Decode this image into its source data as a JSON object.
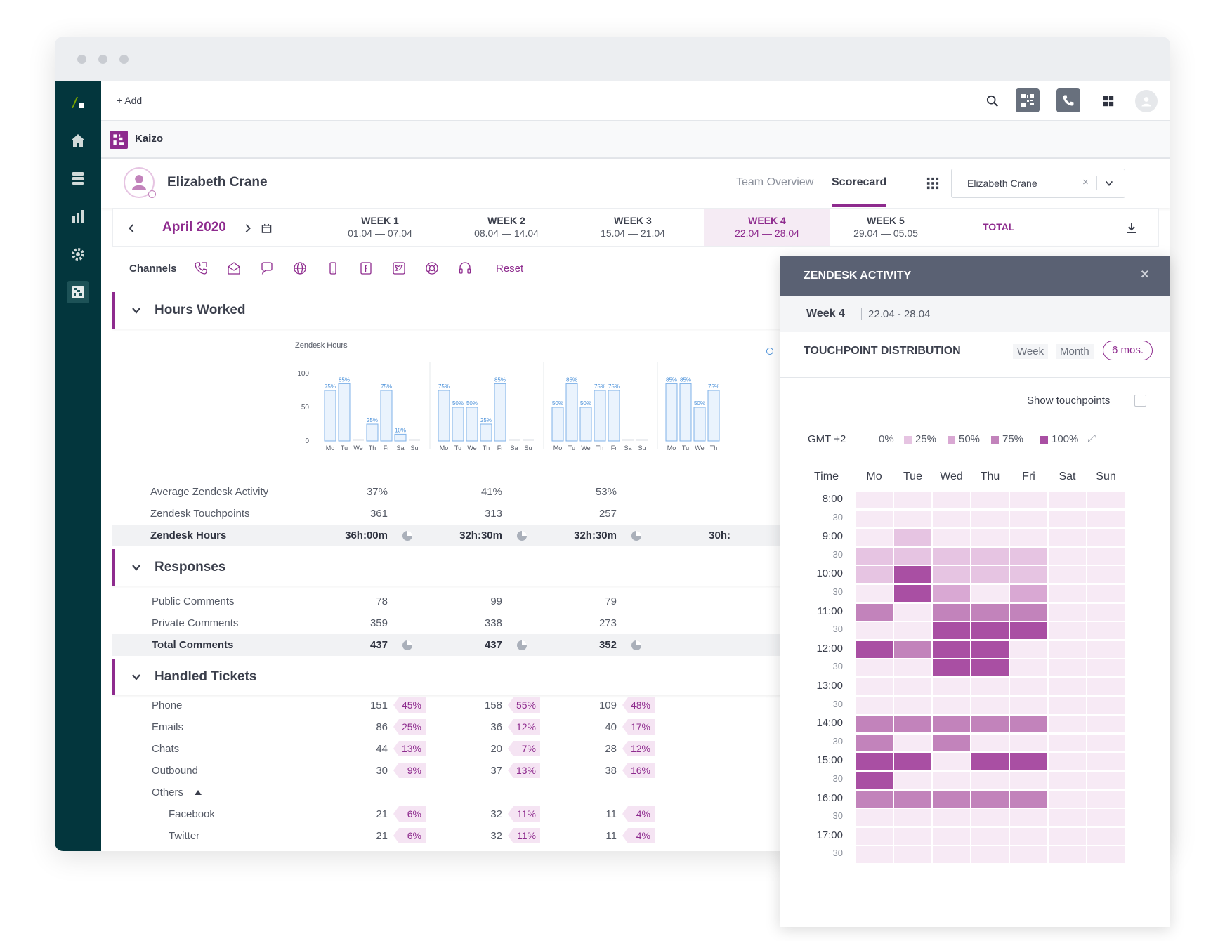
{
  "topbar": {
    "add_label": "+ Add"
  },
  "app": {
    "name": "Kaizo"
  },
  "header": {
    "user_name": "Elizabeth Crane",
    "tabs": [
      {
        "label": "Team Overview"
      },
      {
        "label": "Scorecard",
        "active": true
      }
    ],
    "user_select": {
      "value": "Elizabeth Crane"
    }
  },
  "weekbar": {
    "month": "April 2020",
    "weeks": [
      {
        "label": "WEEK 1",
        "range": "01.04 — 07.04"
      },
      {
        "label": "WEEK 2",
        "range": "08.04 — 14.04"
      },
      {
        "label": "WEEK 3",
        "range": "15.04 — 21.04"
      },
      {
        "label": "WEEK 4",
        "range": "22.04 — 28.04",
        "active": true
      },
      {
        "label": "WEEK 5",
        "range": "29.04 — 05.05"
      }
    ],
    "total_label": "TOTAL"
  },
  "channels": {
    "label": "Channels",
    "icons": [
      "phone-icon",
      "email-icon",
      "chat-icon",
      "web-icon",
      "mobile-icon",
      "facebook-icon",
      "twitter-icon",
      "help-center-icon",
      "headset-icon"
    ],
    "reset_label": "Reset"
  },
  "sections": {
    "hours": {
      "title": "Hours Worked",
      "rows": [
        {
          "label": "Average Zendesk Activity",
          "values": [
            "37%",
            "41%",
            "53%"
          ]
        },
        {
          "label": "Zendesk Touchpoints",
          "values": [
            "361",
            "313",
            "257"
          ]
        },
        {
          "label": "Zendesk Hours",
          "values": [
            "36h:00m",
            "32h:30m",
            "32h:30m",
            "30h:"
          ]
        }
      ]
    },
    "responses": {
      "title": "Responses",
      "rows": [
        {
          "label": "Public Comments",
          "values": [
            "78",
            "99",
            "79"
          ]
        },
        {
          "label": "Private Comments",
          "values": [
            "359",
            "338",
            "273"
          ]
        },
        {
          "label": "Total Comments",
          "values": [
            "437",
            "437",
            "352"
          ]
        }
      ]
    },
    "tickets": {
      "title": "Handled Tickets",
      "rows": [
        {
          "label": "Phone",
          "values": [
            "151",
            "158",
            "109"
          ],
          "pcts": [
            "45%",
            "55%",
            "48%"
          ]
        },
        {
          "label": "Emails",
          "values": [
            "86",
            "36",
            "40"
          ],
          "pcts": [
            "25%",
            "12%",
            "17%"
          ]
        },
        {
          "label": "Chats",
          "values": [
            "44",
            "20",
            "28"
          ],
          "pcts": [
            "13%",
            "7%",
            "12%"
          ]
        },
        {
          "label": "Outbound",
          "values": [
            "30",
            "37",
            "38"
          ],
          "pcts": [
            "9%",
            "13%",
            "16%"
          ]
        },
        {
          "label": "Others",
          "values": [],
          "pcts": []
        },
        {
          "label": "Facebook",
          "values": [
            "21",
            "32",
            "11"
          ],
          "pcts": [
            "6%",
            "11%",
            "4%"
          ]
        },
        {
          "label": "Twitter",
          "values": [
            "21",
            "32",
            "11"
          ],
          "pcts": [
            "6%",
            "11%",
            "4%"
          ]
        }
      ]
    }
  },
  "chart_data": {
    "type": "bar",
    "title": "Zendesk Hours",
    "ylim": [
      0,
      100
    ],
    "yticks": [
      100,
      50,
      0
    ],
    "days": [
      "Mo",
      "Tu",
      "We",
      "Th",
      "Fr",
      "Sa",
      "Su"
    ],
    "groups": [
      {
        "values": [
          75,
          85,
          0,
          25,
          75,
          10,
          0
        ],
        "labels": [
          "75%",
          "85%",
          "",
          "25%",
          "75%",
          "10%",
          ""
        ]
      },
      {
        "values": [
          75,
          50,
          50,
          25,
          85,
          0,
          0
        ],
        "labels": [
          "75%",
          "50%",
          "50%",
          "25%",
          "85%",
          "",
          ""
        ]
      },
      {
        "values": [
          50,
          85,
          50,
          75,
          75,
          0,
          0
        ],
        "labels": [
          "50%",
          "85%",
          "50%",
          "75%",
          "75%",
          "",
          ""
        ]
      },
      {
        "values": [
          85,
          85,
          50,
          75
        ],
        "labels": [
          "85%",
          "85%",
          "50%",
          "75%"
        ]
      }
    ]
  },
  "panel": {
    "title": "ZENDESK ACTIVITY",
    "week_label": "Week 4",
    "week_range": "22.04 - 28.04",
    "section_title": "TOUCHPOINT DISTRIBUTION",
    "ranges": [
      {
        "label": "Week"
      },
      {
        "label": "Month"
      },
      {
        "label": "6 mos.",
        "active": true
      }
    ],
    "show_touchpoints_label": "Show touchpoints",
    "timezone": "GMT +2",
    "legend": [
      "0%",
      "25%",
      "50%",
      "75%",
      "100%"
    ],
    "time_header": "Time",
    "days": [
      "Mo",
      "Tue",
      "Wed",
      "Thu",
      "Fri",
      "Sat",
      "Sun"
    ],
    "time_labels": [
      "8:00",
      "30",
      "9:00",
      "30",
      "10:00",
      "30",
      "11:00",
      "30",
      "12:00",
      "30",
      "13:00",
      "30",
      "14:00",
      "30",
      "15:00",
      "30",
      "16:00",
      "30",
      "17:00",
      "30"
    ],
    "heat_levels": [
      [
        0,
        0,
        0,
        0,
        0,
        0,
        0
      ],
      [
        0,
        0,
        0,
        0,
        0,
        0,
        0
      ],
      [
        0,
        1,
        0,
        0,
        0,
        0,
        0
      ],
      [
        1,
        1,
        1,
        1,
        1,
        0,
        0
      ],
      [
        1,
        4,
        1,
        1,
        1,
        0,
        0
      ],
      [
        0,
        4,
        2,
        0,
        2,
        0,
        0
      ],
      [
        3,
        0,
        3,
        3,
        3,
        0,
        0
      ],
      [
        0,
        0,
        4,
        4,
        4,
        0,
        0
      ],
      [
        4,
        3,
        4,
        4,
        0,
        0,
        0
      ],
      [
        0,
        0,
        4,
        4,
        0,
        0,
        0
      ],
      [
        0,
        0,
        0,
        0,
        0,
        0,
        0
      ],
      [
        0,
        0,
        0,
        0,
        0,
        0,
        0
      ],
      [
        3,
        3,
        3,
        3,
        3,
        0,
        0
      ],
      [
        3,
        0,
        3,
        0,
        0,
        0,
        0
      ],
      [
        4,
        4,
        0,
        4,
        4,
        0,
        0
      ],
      [
        4,
        0,
        0,
        0,
        0,
        0,
        0
      ],
      [
        3,
        3,
        3,
        3,
        3,
        0,
        0
      ],
      [
        0,
        0,
        0,
        0,
        0,
        0,
        0
      ],
      [
        0,
        0,
        0,
        0,
        0,
        0,
        0
      ],
      [
        0,
        0,
        0,
        0,
        0,
        0,
        0
      ]
    ],
    "colors": {
      "level0": "#f7eaf5",
      "level1": "#e6c4e2",
      "level2": "#d9a8d3",
      "level3": "#c283bb",
      "level4": "#a94fa3"
    }
  },
  "colors": {
    "accent": "#8e2b8e",
    "sidebar": "#03363d",
    "brand_green": "#78a300"
  }
}
